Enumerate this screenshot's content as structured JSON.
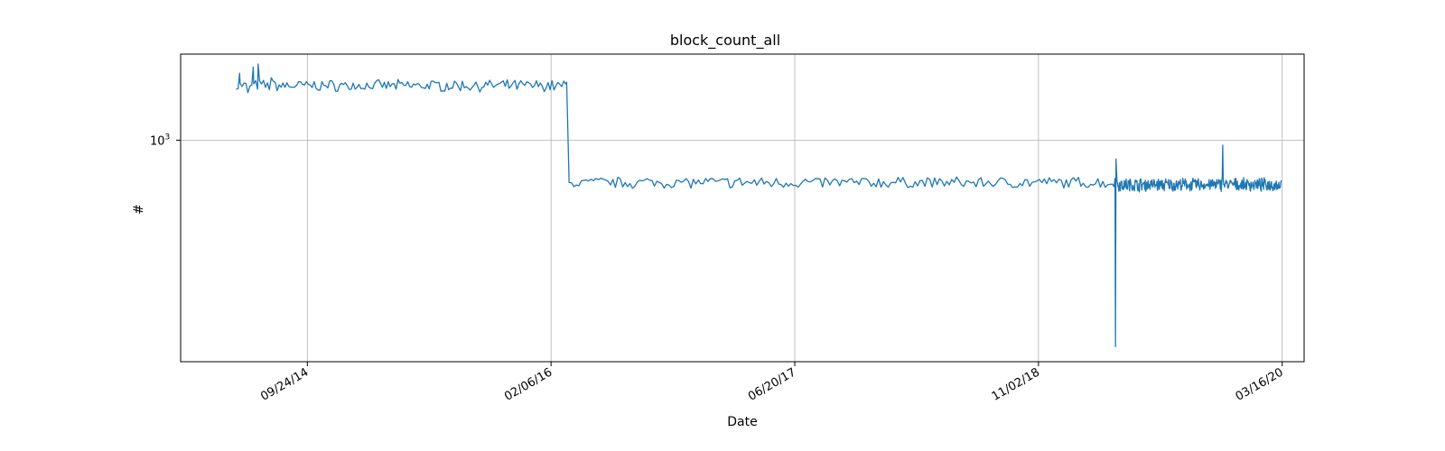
{
  "chart_data": {
    "type": "line",
    "title": "block_count_all",
    "xlabel": "Date",
    "ylabel": "#",
    "y_scale": "log",
    "x_range": [
      "2014-01-07",
      "2020-04-30"
    ],
    "ylim": [
      255,
      1700
    ],
    "grid": true,
    "line_color": "#1f77b4",
    "x_ticks": [
      {
        "date": "2014-09-24",
        "label": "09/24/14"
      },
      {
        "date": "2016-02-06",
        "label": "02/06/16"
      },
      {
        "date": "2017-06-20",
        "label": "06/20/17"
      },
      {
        "date": "2018-11-02",
        "label": "11/02/18"
      },
      {
        "date": "2020-03-16",
        "label": "03/16/20"
      }
    ],
    "y_ticks": [
      {
        "value": 1000,
        "base": "10",
        "exp": "3"
      }
    ],
    "series": [
      {
        "segments": [
          {
            "start": "2014-05-01",
            "end": "2016-03-10",
            "sample_days": 4,
            "mean": 1400,
            "jitter": 0.03
          },
          {
            "start": "2016-03-14",
            "end": "2019-04-10",
            "sample_days": 5,
            "mean": 770,
            "jitter": 0.03
          },
          {
            "start": "2019-04-12",
            "end": "2020-03-14",
            "sample_days": 1,
            "mean": 760,
            "jitter": 0.035
          }
        ],
        "points": [
          {
            "x": "2014-05-08",
            "y": 1510
          },
          {
            "x": "2014-05-25",
            "y": 1340
          },
          {
            "x": "2014-06-05",
            "y": 1570
          },
          {
            "x": "2014-06-15",
            "y": 1600
          },
          {
            "x": "2014-07-12",
            "y": 1470
          },
          {
            "x": "2016-03-09",
            "y": 1430
          },
          {
            "x": "2016-03-14",
            "y": 770
          },
          {
            "x": "2019-04-06",
            "y": 750
          },
          {
            "x": "2019-04-08",
            "y": 790
          },
          {
            "x": "2019-04-09",
            "y": 280
          },
          {
            "x": "2019-04-10",
            "y": 890
          },
          {
            "x": "2019-04-12",
            "y": 780
          },
          {
            "x": "2019-11-14",
            "y": 800
          },
          {
            "x": "2019-11-15",
            "y": 970
          },
          {
            "x": "2019-11-16",
            "y": 790
          }
        ]
      }
    ]
  }
}
